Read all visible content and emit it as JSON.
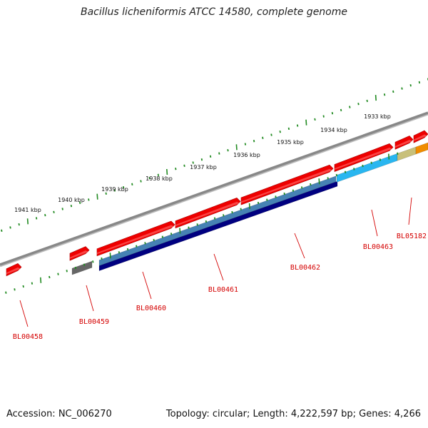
{
  "title": "Bacillus licheniformis ATCC 14580, complete genome",
  "footer": {
    "accession": "Accession: NC_006270",
    "stats": "Topology: circular; Length: 4,222,597 bp; Genes: 4,266"
  },
  "scale_labels": [
    "1941 kbp",
    "1940 kbp",
    "1939 kbp",
    "1938 kbp",
    "1937 kbp",
    "1936 kbp",
    "1935 kbp",
    "1934 kbp",
    "1933 kbp"
  ],
  "gene_labels": [
    "BL00458",
    "BL00459",
    "BL00460",
    "BL00461",
    "BL00462",
    "BL00463",
    "BL05182"
  ],
  "colors": {
    "backbone": "#888888",
    "cds": "#ee0000",
    "tick": "#228b22",
    "label": "#d40000",
    "track_steelblue": "#4682b4",
    "track_navy": "#000080",
    "track_lightblue": "#29b6f0",
    "track_khaki": "#c8c07a",
    "track_orange": "#f08c00",
    "track_gray": "#666666"
  }
}
